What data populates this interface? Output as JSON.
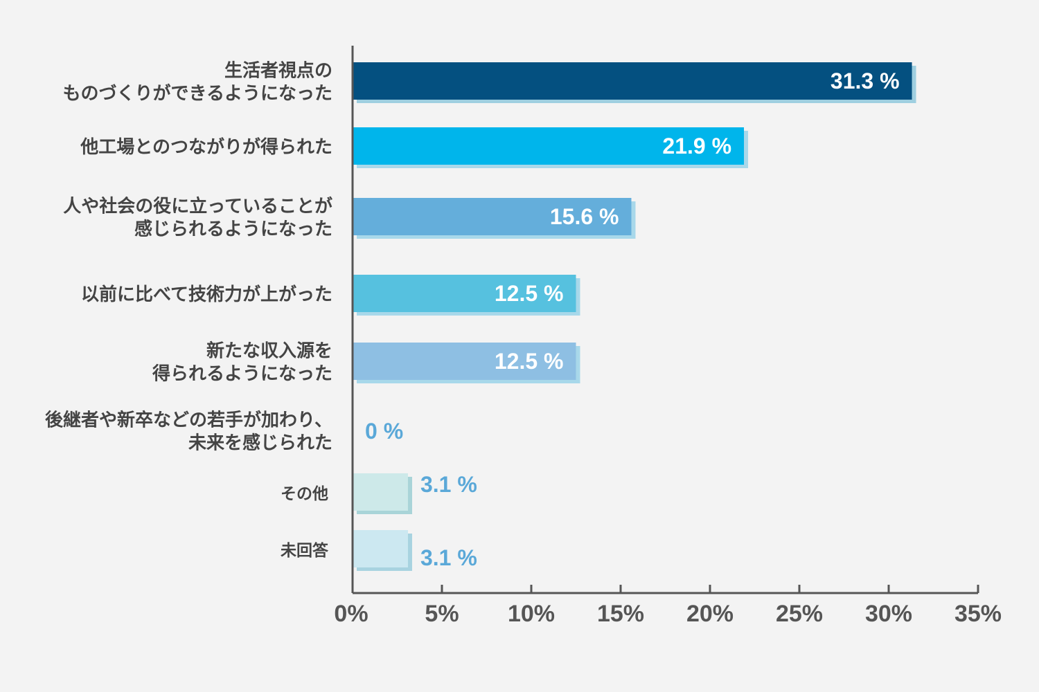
{
  "chart_data": {
    "type": "bar",
    "orientation": "horizontal",
    "categories": [
      [
        "生活者視点の",
        "ものづくりができるようになった"
      ],
      [
        "他工場とのつながりが得られた"
      ],
      [
        "人や社会の役に立っていることが",
        "感じられるようになった"
      ],
      [
        "以前に比べて技術力が上がった"
      ],
      [
        "新たな収入源を",
        "得られるようになった"
      ],
      [
        "後継者や新卒などの若手が加わり、",
        "未来を感じられた"
      ],
      [
        "その他"
      ],
      [
        "未回答"
      ]
    ],
    "values": [
      31.3,
      21.9,
      15.6,
      12.5,
      12.5,
      0,
      3.1,
      3.1
    ],
    "value_labels": [
      "31.3 %",
      "21.9 %",
      "15.6 %",
      "12.5 %",
      "12.5 %",
      "0 %",
      "3.1 %",
      "3.1 %"
    ],
    "colors": [
      "#045080",
      "#00b5eb",
      "#64aedb",
      "#56c1df",
      "#8ebfe3",
      "#8ebfe3",
      "#cde9e9",
      "#cce8f1"
    ],
    "shadow_colors": [
      "#9fcfe0",
      "#a8d8ea",
      "#a8d8ea",
      "#a8d8ea",
      "#a8d8ea",
      "#a8d8ea",
      "#a9d4d8",
      "#a8d3e0"
    ],
    "label_inside": [
      true,
      true,
      true,
      true,
      true,
      false,
      false,
      false
    ],
    "outside_label_color": "#5aa8d8",
    "inside_label_color": "#ffffff",
    "xlim": [
      0,
      35
    ],
    "xticks": [
      0,
      5,
      10,
      15,
      20,
      25,
      30,
      35
    ],
    "xtick_labels": [
      "0%",
      "5%",
      "10%",
      "15%",
      "20%",
      "25%",
      "30%",
      "35%"
    ],
    "title": "",
    "xlabel": "",
    "ylabel": "",
    "grid": false,
    "legend": "none",
    "axis_color": "#555555"
  }
}
